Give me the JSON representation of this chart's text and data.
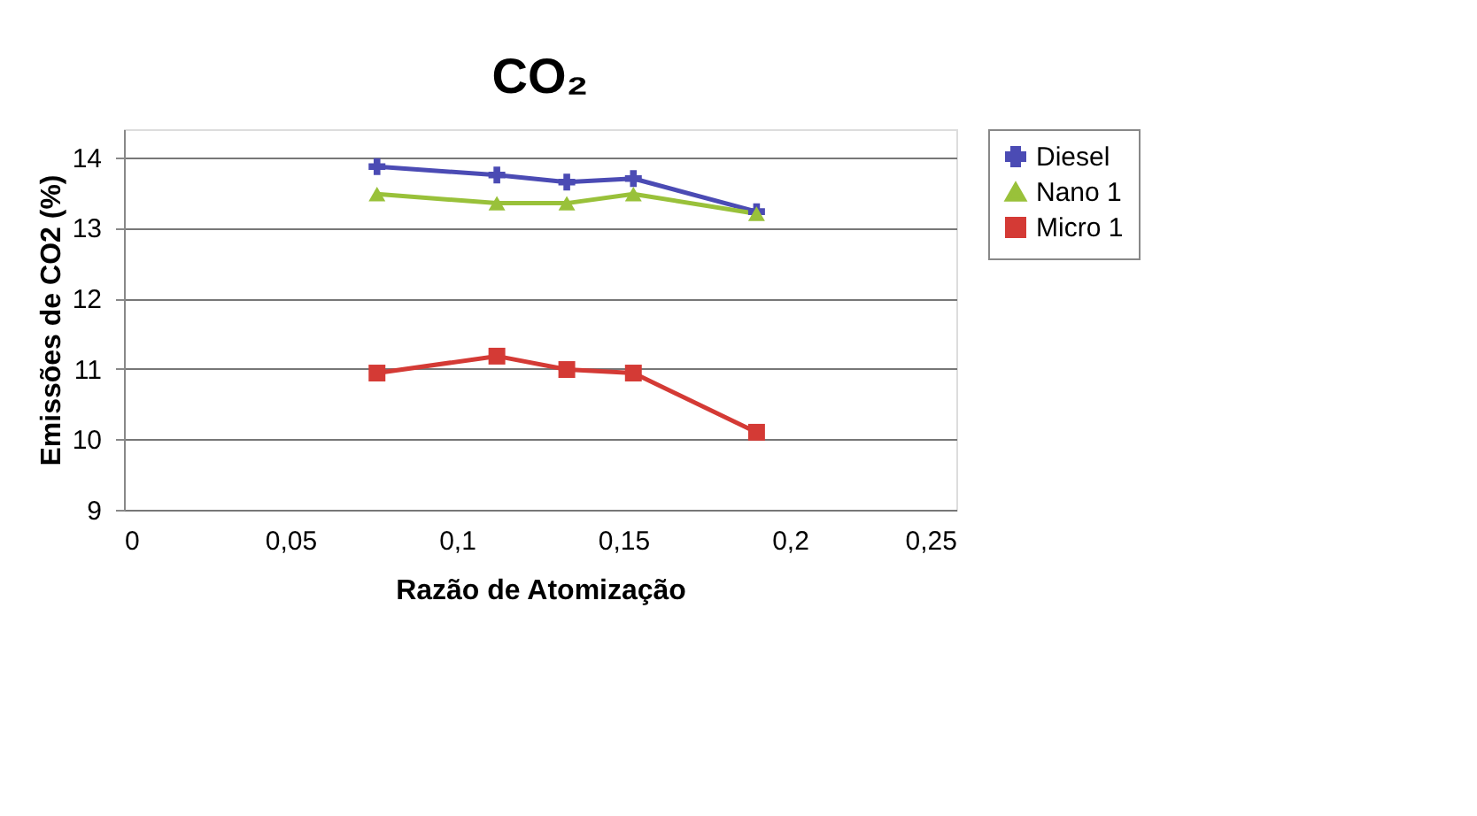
{
  "chart_data": {
    "type": "line",
    "title": "CO₂",
    "xlabel": "Razão de Atomização",
    "ylabel": "Emissões de CO2 (%)",
    "x": [
      0.076,
      0.112,
      0.133,
      0.153,
      0.19
    ],
    "series": [
      {
        "name": "Diesel",
        "color": "#4b4bb4",
        "values": [
          13.87,
          13.75,
          13.65,
          13.7,
          13.23
        ],
        "marker": "cross"
      },
      {
        "name": "Nano 1",
        "color": "#99c13a",
        "values": [
          13.48,
          13.35,
          13.35,
          13.48,
          13.2
        ],
        "marker": "triangle"
      },
      {
        "name": "Micro 1",
        "color": "#d43a35",
        "values": [
          10.94,
          11.18,
          10.99,
          10.94,
          10.1
        ],
        "marker": "square"
      }
    ],
    "xlim": [
      0,
      0.25
    ],
    "xticks": [
      {
        "value": 0,
        "label": "0"
      },
      {
        "value": 0.05,
        "label": "0,05"
      },
      {
        "value": 0.1,
        "label": "0,1"
      },
      {
        "value": 0.15,
        "label": "0,15"
      },
      {
        "value": 0.2,
        "label": "0,2"
      },
      {
        "value": 0.25,
        "label": "0,25"
      }
    ],
    "ylim": [
      9,
      14.4
    ],
    "yticks": [
      9,
      10,
      11,
      12,
      13,
      14
    ],
    "grid": "y",
    "legend": "right"
  }
}
